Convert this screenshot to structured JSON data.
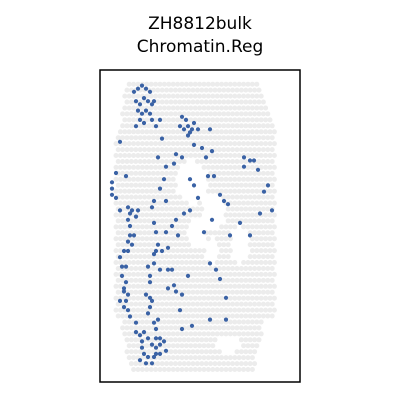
{
  "chart_data": {
    "type": "scatter",
    "title": "ZH8812bulk",
    "subtitle": "Chromatin.Reg",
    "xlabel": "",
    "ylabel": "",
    "xlim": [
      0,
      100
    ],
    "ylim": [
      0,
      100
    ],
    "grid": false,
    "axis_ticks": false,
    "colors": {
      "tissue": "#ececec",
      "spot": "#3a62a5",
      "frame": "#000000"
    },
    "tissue_spots": {
      "rows": []
    },
    "series": [
      {
        "values": [
          [
            17,
            93
          ],
          [
            19,
            94
          ],
          [
            21,
            95
          ],
          [
            23,
            94
          ],
          [
            25,
            93
          ],
          [
            18,
            90
          ],
          [
            20,
            89
          ],
          [
            22,
            91
          ],
          [
            24,
            90
          ],
          [
            26,
            89
          ],
          [
            19,
            87
          ],
          [
            21,
            86
          ],
          [
            23,
            87
          ],
          [
            25,
            86
          ],
          [
            27,
            90
          ],
          [
            30,
            84
          ],
          [
            26,
            84
          ],
          [
            22,
            83
          ],
          [
            20,
            84
          ],
          [
            18,
            82
          ],
          [
            41,
            85
          ],
          [
            43,
            84
          ],
          [
            44,
            82
          ],
          [
            42,
            81
          ],
          [
            45,
            80
          ],
          [
            47,
            83
          ],
          [
            46,
            81
          ],
          [
            40,
            82
          ],
          [
            44,
            79
          ],
          [
            49,
            81
          ],
          [
            55,
            81
          ],
          [
            38,
            73
          ],
          [
            37,
            70
          ],
          [
            41,
            72
          ],
          [
            33,
            69
          ],
          [
            45,
            65
          ],
          [
            47,
            63
          ],
          [
            49,
            59
          ],
          [
            53,
            72
          ],
          [
            57,
            66
          ],
          [
            10,
            77
          ],
          [
            8,
            67
          ],
          [
            6,
            64
          ],
          [
            6,
            62
          ],
          [
            6,
            60
          ],
          [
            8,
            59
          ],
          [
            10,
            55
          ],
          [
            14,
            56
          ],
          [
            16,
            55
          ],
          [
            13,
            66
          ],
          [
            15,
            54
          ],
          [
            14,
            52
          ],
          [
            29,
            72
          ],
          [
            33,
            58
          ],
          [
            36,
            50
          ],
          [
            42,
            54
          ],
          [
            33,
            48
          ],
          [
            38,
            52
          ],
          [
            45,
            55
          ],
          [
            52,
            48
          ],
          [
            56,
            52
          ],
          [
            60,
            60
          ],
          [
            64,
            57
          ],
          [
            72,
            72
          ],
          [
            72,
            69
          ],
          [
            77,
            71
          ],
          [
            82,
            61
          ],
          [
            79,
            68
          ],
          [
            75,
            71
          ],
          [
            84,
            63
          ],
          [
            86,
            55
          ],
          [
            80,
            54
          ],
          [
            75,
            47
          ],
          [
            70,
            51
          ],
          [
            65,
            47
          ],
          [
            62,
            58
          ],
          [
            55,
            38
          ],
          [
            58,
            36
          ],
          [
            60,
            33
          ],
          [
            63,
            27
          ],
          [
            63,
            20
          ],
          [
            55,
            20
          ],
          [
            46,
            18
          ],
          [
            41,
            17
          ],
          [
            40,
            23
          ],
          [
            38,
            29
          ],
          [
            44,
            34
          ],
          [
            30,
            36
          ],
          [
            34,
            36
          ],
          [
            36,
            36
          ],
          [
            27,
            38
          ],
          [
            24,
            37
          ],
          [
            25,
            34
          ],
          [
            25,
            32
          ],
          [
            23,
            28
          ],
          [
            25,
            27
          ],
          [
            25,
            24
          ],
          [
            24,
            22
          ],
          [
            27,
            19
          ],
          [
            28,
            17
          ],
          [
            28,
            14
          ],
          [
            30,
            12
          ],
          [
            33,
            10
          ],
          [
            30,
            9
          ],
          [
            27,
            8
          ],
          [
            24,
            8
          ],
          [
            22,
            9
          ],
          [
            21,
            11
          ],
          [
            21,
            13
          ],
          [
            20,
            15
          ],
          [
            22,
            16
          ],
          [
            24,
            14
          ],
          [
            26,
            12
          ],
          [
            28,
            11
          ],
          [
            30,
            14
          ],
          [
            29,
            20
          ],
          [
            26,
            26
          ],
          [
            32,
            13
          ],
          [
            18,
            16
          ],
          [
            18,
            19
          ],
          [
            15,
            21
          ],
          [
            14,
            23
          ],
          [
            12,
            24
          ],
          [
            10,
            26
          ],
          [
            13,
            26
          ],
          [
            12,
            29
          ],
          [
            14,
            28
          ],
          [
            12,
            30
          ],
          [
            11,
            34
          ],
          [
            13,
            32
          ],
          [
            11,
            37
          ],
          [
            13,
            37
          ],
          [
            10,
            40
          ],
          [
            12,
            42
          ],
          [
            14,
            45
          ],
          [
            14,
            42
          ],
          [
            15,
            47
          ],
          [
            16,
            44
          ],
          [
            17,
            47
          ],
          [
            15,
            50
          ],
          [
            18,
            53
          ],
          [
            19,
            55
          ],
          [
            26,
            56
          ],
          [
            27,
            51
          ],
          [
            28,
            48
          ],
          [
            30,
            62
          ],
          [
            32,
            65
          ],
          [
            39,
            47
          ],
          [
            34,
            43
          ],
          [
            31,
            42
          ],
          [
            29,
            44
          ],
          [
            28,
            42
          ],
          [
            27,
            41
          ],
          [
            34,
            30
          ],
          [
            37,
            31
          ],
          [
            41,
            28
          ],
          [
            28,
            9
          ],
          [
            26,
            6
          ],
          [
            23,
            6
          ],
          [
            20,
            7
          ],
          [
            27,
            58
          ],
          [
            31,
            78
          ],
          [
            28,
            82
          ],
          [
            51,
            75
          ],
          [
            54,
            66
          ],
          [
            56,
            74
          ],
          [
            47,
            76
          ]
        ]
      }
    ]
  }
}
